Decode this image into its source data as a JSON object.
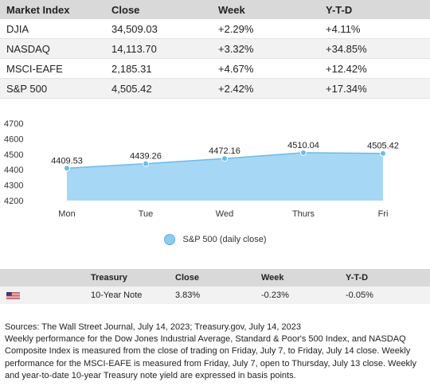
{
  "market_table": {
    "headers": [
      "Market Index",
      "Close",
      "Week",
      "Y-T-D"
    ],
    "rows": [
      {
        "index": "DJIA",
        "close": "34,509.03",
        "week": "+2.29%",
        "ytd": "+4.11%"
      },
      {
        "index": "NASDAQ",
        "close": "14,113.70",
        "week": "+3.32%",
        "ytd": "+34.85%"
      },
      {
        "index": "MSCI-EAFE",
        "close": "2,185.31",
        "week": "+4.67%",
        "ytd": "+12.42%"
      },
      {
        "index": "S&P 500",
        "close": "4,505.42",
        "week": "+2.42%",
        "ytd": "+17.34%"
      }
    ]
  },
  "chart_data": {
    "type": "area",
    "categories": [
      "Mon",
      "Tue",
      "Wed",
      "Thurs",
      "Fri"
    ],
    "series": [
      {
        "name": "S&P 500 (daily close)",
        "values": [
          4409.53,
          4439.26,
          4472.16,
          4510.04,
          4505.42
        ],
        "labels": [
          "4409.53",
          "4439.26",
          "4472.16",
          "4510.04",
          "4505.42"
        ]
      }
    ],
    "yticks": [
      "4700",
      "4600",
      "4500",
      "4400",
      "4300",
      "4200"
    ],
    "ylim": [
      4200,
      4700
    ],
    "grid": false,
    "legend_position": "bottom",
    "fill_color": "#a6d7f4",
    "line_color": "#6dbbe9"
  },
  "treasury_table": {
    "headers": [
      "",
      "Treasury",
      "Close",
      "Week",
      "Y-T-D"
    ],
    "row": {
      "flag": "us-flag-icon",
      "name": "10-Year Note",
      "close": "3.83%",
      "week": "-0.23%",
      "ytd": "-0.05%"
    }
  },
  "notes": {
    "source": "Sources: The Wall Street Journal, July 14, 2023; Treasury.gov, July 14, 2023",
    "body": "Weekly performance for the Dow Jones Industrial Average, Standard & Poor's 500 Index, and NASDAQ Composite Index is measured from the close of trading on Friday, July 7, to Friday, July 14 close. Weekly performance for the MSCI-EAFE is measured from Friday, July 7, open to Thursday, July 13 close. Weekly and year-to-date 10-year Treasury note yield are expressed in basis points."
  }
}
